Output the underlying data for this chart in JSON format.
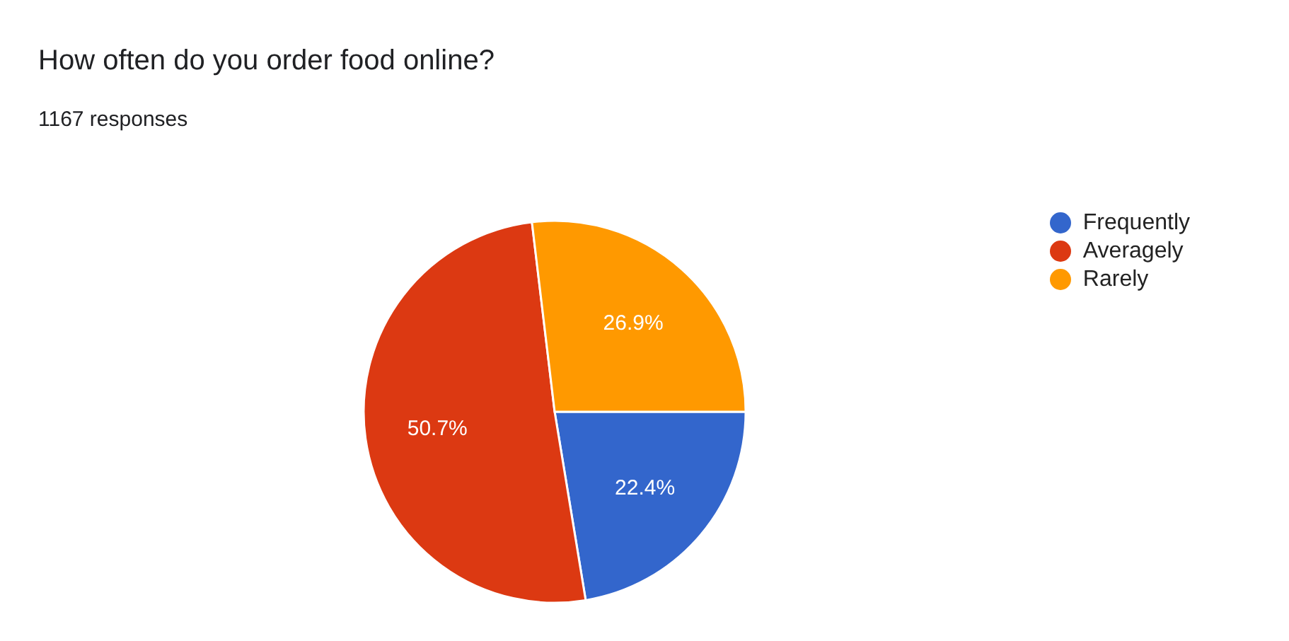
{
  "chart_data": {
    "type": "pie",
    "title": "How often do you order food online?",
    "subtitle": "1167 responses",
    "categories": [
      "Frequently",
      "Averagely",
      "Rarely"
    ],
    "values": [
      22.4,
      50.7,
      26.9
    ],
    "colors": [
      "#3366cc",
      "#dc3912",
      "#ff9900"
    ],
    "value_labels": [
      "22.4%",
      "50.7%",
      "26.9%"
    ],
    "legend": "top right"
  }
}
